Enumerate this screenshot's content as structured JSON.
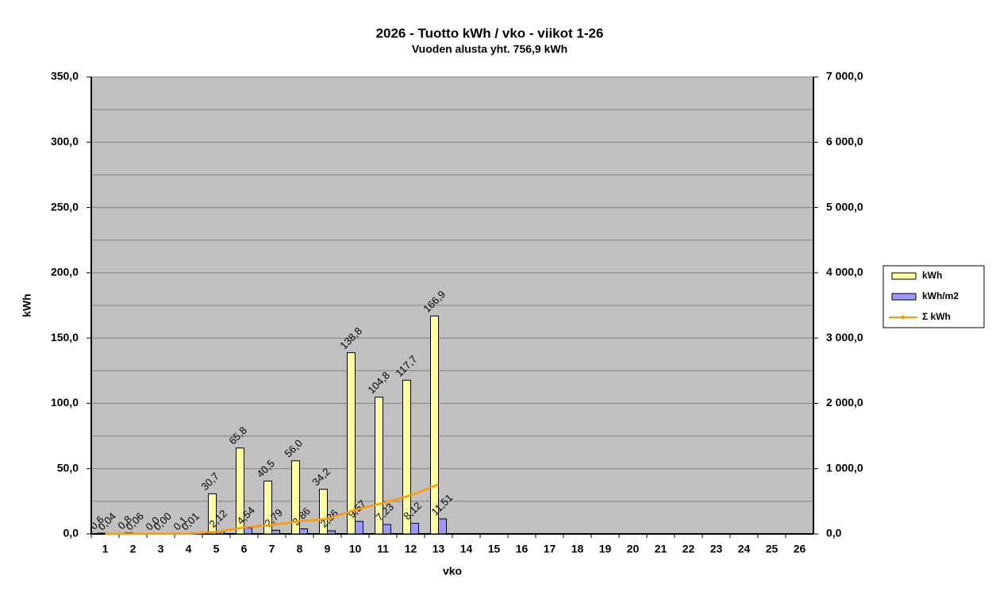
{
  "chart_data": {
    "type": "bar",
    "title": "2026 - Tuotto kWh / vko - viikot 1-26",
    "subtitle": "Vuoden alusta yht. 756,9 kWh",
    "x_label": "vko",
    "y_label": "kWh",
    "categories": [
      "1",
      "2",
      "3",
      "4",
      "5",
      "6",
      "7",
      "8",
      "9",
      "10",
      "11",
      "12",
      "13",
      "14",
      "15",
      "16",
      "17",
      "18",
      "19",
      "20",
      "21",
      "22",
      "23",
      "24",
      "25",
      "26"
    ],
    "series": [
      {
        "name": "kWh",
        "color": "#ffffa0",
        "axis": "y",
        "values": [
          0.6,
          0.8,
          0.0,
          0.1,
          30.7,
          65.8,
          40.5,
          56.0,
          34.2,
          138.8,
          104.8,
          117.7,
          166.9,
          null,
          null,
          null,
          null,
          null,
          null,
          null,
          null,
          null,
          null,
          null,
          null,
          null
        ],
        "value_labels": [
          "0,6",
          "0,8",
          "0,0",
          "0,1",
          "30,7",
          "65,8",
          "40,5",
          "56,0",
          "34,2",
          "138,8",
          "104,8",
          "117,7",
          "166,9",
          null,
          null,
          null,
          null,
          null,
          null,
          null,
          null,
          null,
          null,
          null,
          null,
          null
        ]
      },
      {
        "name": "kWh/m2",
        "color": "#9999ff",
        "axis": "y",
        "values": [
          0.04,
          0.06,
          0.0,
          0.01,
          2.12,
          4.54,
          2.79,
          3.86,
          2.36,
          9.57,
          7.23,
          8.12,
          11.51,
          null,
          null,
          null,
          null,
          null,
          null,
          null,
          null,
          null,
          null,
          null,
          null,
          null
        ],
        "value_labels": [
          "0,04",
          "0,06",
          "0,00",
          "0,01",
          "2,12",
          "4,54",
          "2,79",
          "3,86",
          "2,36",
          "9,57",
          "7,23",
          "8,12",
          "11,51",
          null,
          null,
          null,
          null,
          null,
          null,
          null,
          null,
          null,
          null,
          null,
          null,
          null
        ]
      },
      {
        "name": "Σ kWh",
        "color": "#ff9900",
        "axis": "y2",
        "type": "line",
        "values": [
          0.6,
          1.4,
          1.4,
          1.5,
          32.2,
          98.0,
          138.5,
          194.5,
          228.7,
          367.5,
          472.3,
          590.0,
          756.9,
          null,
          null,
          null,
          null,
          null,
          null,
          null,
          null,
          null,
          null,
          null,
          null,
          null
        ]
      }
    ],
    "ylim": [
      0,
      350
    ],
    "yticks": [
      {
        "value": 0,
        "label": "0,0"
      },
      {
        "value": 50,
        "label": "50,0"
      },
      {
        "value": 100,
        "label": "100,0"
      },
      {
        "value": 150,
        "label": "150,0"
      },
      {
        "value": 200,
        "label": "200,0"
      },
      {
        "value": 250,
        "label": "250,0"
      },
      {
        "value": 300,
        "label": "300,0"
      },
      {
        "value": 350,
        "label": "350,0"
      }
    ],
    "minor_yticks": [
      25,
      75,
      125,
      175,
      225,
      275,
      325
    ],
    "y2lim": [
      0,
      7000
    ],
    "y2ticks": [
      {
        "value": 0,
        "label": "0,0"
      },
      {
        "value": 1000,
        "label": "1 000,0"
      },
      {
        "value": 2000,
        "label": "2 000,0"
      },
      {
        "value": 3000,
        "label": "3 000,0"
      },
      {
        "value": 4000,
        "label": "4 000,0"
      },
      {
        "value": 5000,
        "label": "5 000,0"
      },
      {
        "value": 6000,
        "label": "6 000,0"
      },
      {
        "value": 7000,
        "label": "7 000,0"
      }
    ],
    "grid": true,
    "plot_background": "#c0c0c0",
    "legend": "right"
  }
}
